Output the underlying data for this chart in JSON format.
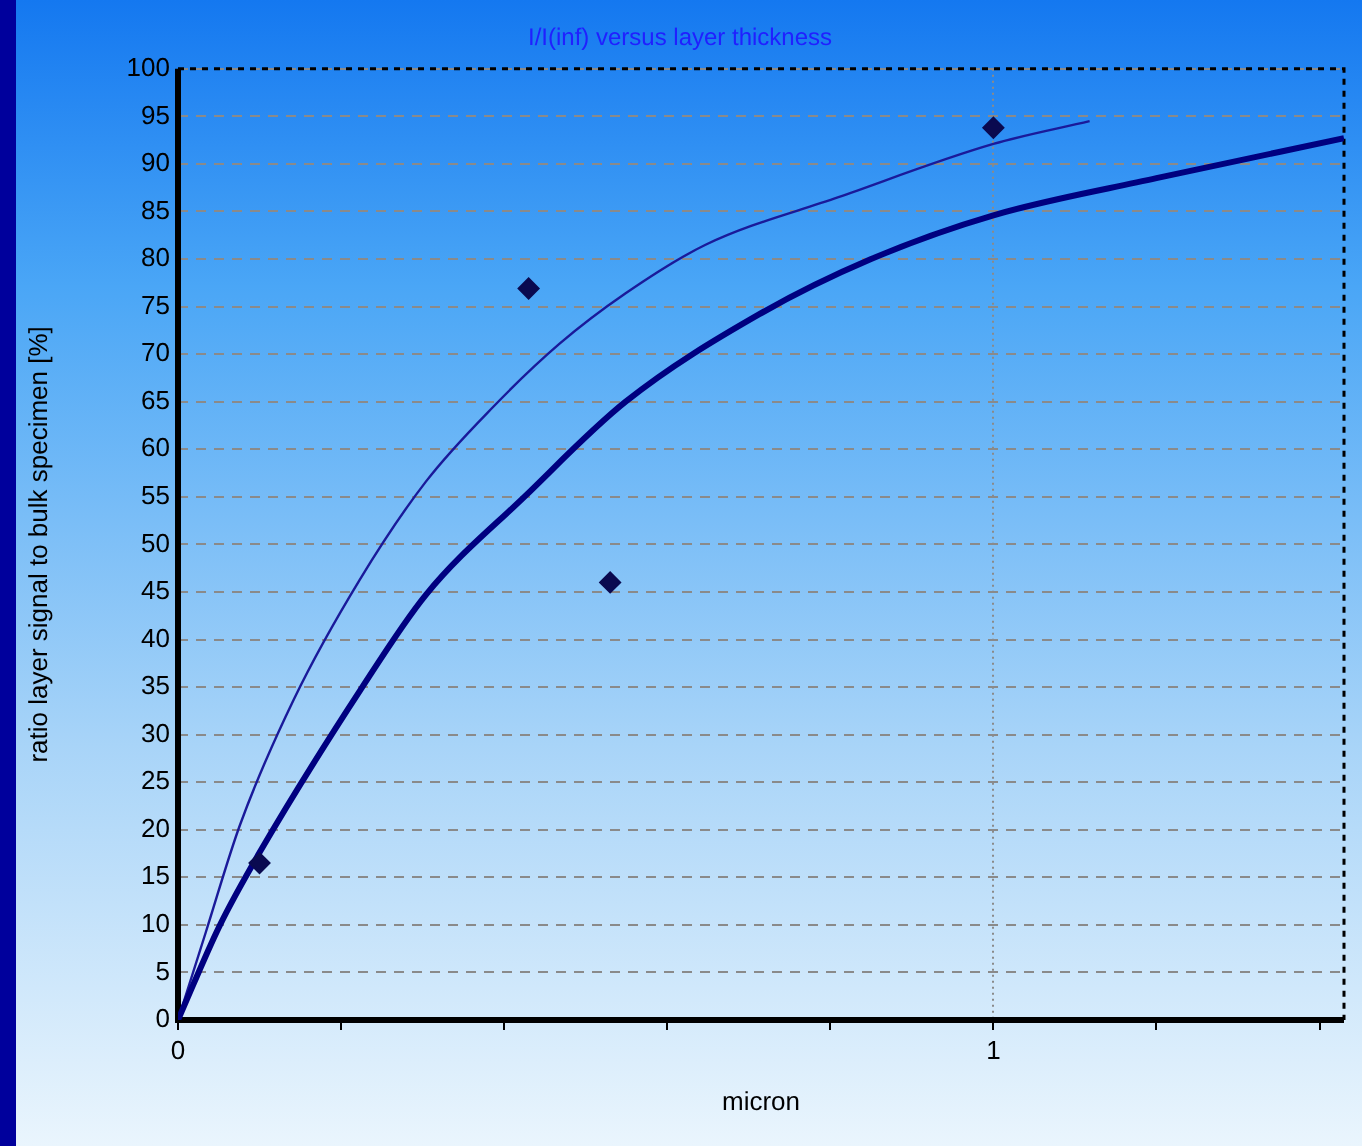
{
  "chart_data": {
    "type": "line",
    "title": "I/I(inf) versus layer thickness",
    "xlabel": "micron",
    "ylabel": "ratio layer signal to bulk specimen [%]",
    "xlim": [
      0,
      1.43
    ],
    "xticks": [
      0,
      {
        "value": 0.2,
        "label": null
      },
      {
        "value": 0.4,
        "label": null
      },
      {
        "value": 0.6,
        "label": null
      },
      {
        "value": 0.8,
        "label": null
      },
      1,
      {
        "value": 1.2,
        "label": null
      },
      {
        "value": 1.4,
        "label": null
      }
    ],
    "ylim": [
      0,
      100
    ],
    "yticks": [
      0,
      5,
      10,
      15,
      20,
      25,
      30,
      35,
      40,
      45,
      50,
      55,
      60,
      65,
      70,
      75,
      80,
      85,
      90,
      95,
      100
    ],
    "grid": true,
    "series": [
      {
        "type": "scatter",
        "marker": "diamond",
        "color": "#0a0a50",
        "x": [
          0.1,
          0.43,
          0.53,
          1.0
        ],
        "values": [
          16.5,
          76.9,
          46,
          93.8
        ]
      },
      {
        "type": "line",
        "marker": "none",
        "color": "#000080",
        "x": [
          0,
          0.051,
          0.1,
          0.223,
          0.304,
          0.426,
          0.549,
          0.713,
          0.85,
          1.0,
          1.2,
          1.43
        ],
        "values": [
          0,
          9.9,
          17.6,
          34.6,
          44.7,
          55.1,
          65,
          74.2,
          80,
          84.6,
          88.5,
          92.7
        ]
      },
      {
        "type": "line",
        "marker": "none",
        "color": "#1a1a9a",
        "x": [
          0,
          0.034,
          0.076,
          0.142,
          0.223,
          0.304,
          0.387,
          0.468,
          0.549,
          0.647,
          0.81,
          1.0,
          1.118
        ],
        "values": [
          0,
          9.2,
          20.5,
          33.7,
          46.3,
          56.6,
          64.5,
          71.1,
          76.4,
          81.5,
          86.5,
          92.1,
          94.5
        ]
      }
    ]
  }
}
